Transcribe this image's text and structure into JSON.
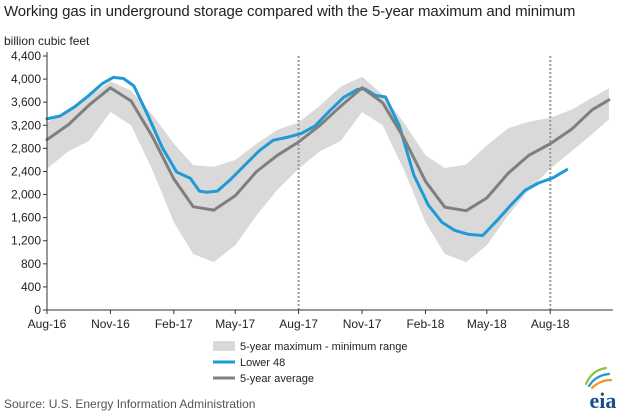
{
  "title": "Working gas in underground storage compared with the 5-year maximum and minimum",
  "source": "Source:  U.S. Energy Information Administration",
  "logo_text": "eia",
  "chart_data": {
    "type": "line",
    "title": "Working gas in underground storage compared with the 5-year maximum and minimum",
    "ylabel": "billion cubic feet",
    "xlabel": "",
    "ylim": [
      0,
      4400
    ],
    "yticks": [
      0,
      400,
      800,
      1200,
      1600,
      2000,
      2400,
      2800,
      3200,
      3600,
      4000,
      4400
    ],
    "ytick_labels": [
      "0",
      "400",
      "800",
      "1,200",
      "1,600",
      "2,000",
      "2,400",
      "2,800",
      "3,200",
      "3,600",
      "4,000",
      "4,400"
    ],
    "xlim": [
      "2016-08-01",
      "2018-10-31"
    ],
    "xticks": [
      "2016-08-01",
      "2016-11-01",
      "2017-02-01",
      "2017-05-01",
      "2017-08-01",
      "2017-11-01",
      "2018-02-01",
      "2018-05-01",
      "2018-08-01"
    ],
    "xtick_labels": [
      "Aug-16",
      "Nov-16",
      "Feb-17",
      "May-17",
      "Aug-17",
      "Nov-17",
      "Feb-18",
      "May-18",
      "Aug-18"
    ],
    "vertical_markers": [
      "2017-08-01",
      "2018-08-01"
    ],
    "grid": false,
    "legend_position": "bottom",
    "colors": {
      "range": "#d9d9d9",
      "lower48": "#1f9ad6",
      "avg": "#7f7f7f",
      "marker": "#999999",
      "axis": "#333333",
      "logo": "#1a4f8b"
    },
    "series": [
      {
        "name": "5-year maximum - minimum range",
        "kind": "band",
        "x": [
          "2016-08-01",
          "2016-09-01",
          "2016-10-01",
          "2016-11-01",
          "2016-12-01",
          "2017-01-01",
          "2017-02-01",
          "2017-03-01",
          "2017-03-31",
          "2017-05-01",
          "2017-06-01",
          "2017-07-01",
          "2017-08-01",
          "2017-09-01",
          "2017-10-01",
          "2017-11-01",
          "2017-12-01",
          "2018-01-01",
          "2018-02-01",
          "2018-03-01",
          "2018-04-01",
          "2018-05-01",
          "2018-06-01",
          "2018-07-01",
          "2018-08-01",
          "2018-09-01",
          "2018-10-01",
          "2018-10-25"
        ],
        "upper": [
          3250,
          3450,
          3700,
          3960,
          3800,
          3380,
          2880,
          2510,
          2480,
          2600,
          2880,
          3120,
          3250,
          3540,
          3870,
          4040,
          3730,
          3240,
          2680,
          2460,
          2520,
          2850,
          3150,
          3260,
          3330,
          3470,
          3680,
          3840
        ],
        "lower": [
          2450,
          2750,
          2930,
          3430,
          3200,
          2420,
          1520,
          970,
          830,
          1120,
          1640,
          2080,
          2450,
          2750,
          2930,
          3430,
          3200,
          2420,
          1520,
          970,
          830,
          1120,
          1640,
          2080,
          2450,
          2750,
          3050,
          3300
        ]
      },
      {
        "name": "Lower 48",
        "kind": "line",
        "x": [
          "2016-08-01",
          "2016-08-20",
          "2016-09-10",
          "2016-10-01",
          "2016-10-20",
          "2016-11-05",
          "2016-11-20",
          "2016-12-05",
          "2016-12-25",
          "2017-01-15",
          "2017-02-05",
          "2017-02-25",
          "2017-03-10",
          "2017-03-20",
          "2017-04-05",
          "2017-04-25",
          "2017-05-15",
          "2017-06-05",
          "2017-06-25",
          "2017-07-15",
          "2017-08-05",
          "2017-08-25",
          "2017-09-15",
          "2017-10-05",
          "2017-10-25",
          "2017-11-05",
          "2017-11-20",
          "2017-12-05",
          "2017-12-25",
          "2018-01-15",
          "2018-02-05",
          "2018-02-25",
          "2018-03-15",
          "2018-04-05",
          "2018-04-25",
          "2018-05-15",
          "2018-06-05",
          "2018-06-25",
          "2018-07-15",
          "2018-08-05",
          "2018-08-25"
        ],
        "y": [
          3310,
          3360,
          3520,
          3720,
          3920,
          4030,
          4010,
          3880,
          3380,
          2820,
          2390,
          2280,
          2060,
          2040,
          2060,
          2270,
          2510,
          2760,
          2940,
          2990,
          3060,
          3190,
          3450,
          3680,
          3820,
          3830,
          3720,
          3690,
          3190,
          2340,
          1820,
          1520,
          1380,
          1310,
          1290,
          1540,
          1820,
          2070,
          2200,
          2290,
          2430
        ]
      },
      {
        "name": "5-year average",
        "kind": "line",
        "x": [
          "2016-08-01",
          "2016-09-01",
          "2016-10-01",
          "2016-11-01",
          "2016-12-01",
          "2017-01-01",
          "2017-02-01",
          "2017-03-01",
          "2017-03-31",
          "2017-05-01",
          "2017-06-01",
          "2017-07-01",
          "2017-08-01",
          "2017-09-01",
          "2017-10-01",
          "2017-11-01",
          "2017-12-01",
          "2018-01-01",
          "2018-02-01",
          "2018-03-01",
          "2018-04-01",
          "2018-05-01",
          "2018-06-01",
          "2018-07-01",
          "2018-08-01",
          "2018-09-01",
          "2018-10-01",
          "2018-10-25"
        ],
        "y": [
          2950,
          3210,
          3550,
          3850,
          3620,
          3000,
          2270,
          1790,
          1730,
          1980,
          2400,
          2680,
          2910,
          3200,
          3530,
          3850,
          3590,
          2970,
          2230,
          1780,
          1720,
          1940,
          2370,
          2680,
          2880,
          3130,
          3470,
          3640
        ]
      }
    ]
  }
}
